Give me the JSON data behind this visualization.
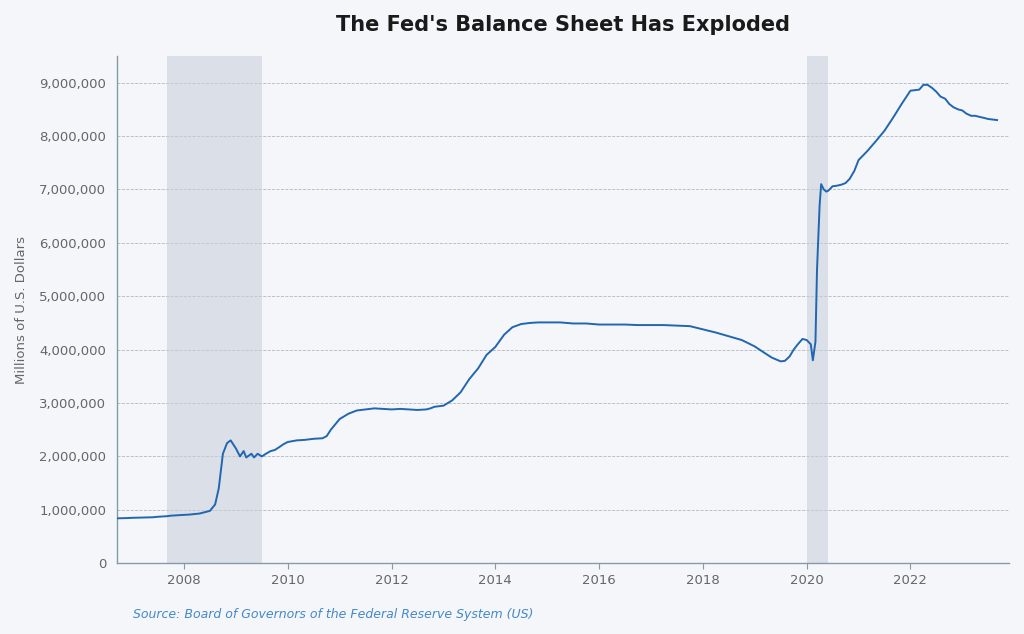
{
  "title": "The Fed's Balance Sheet Has Exploded",
  "ylabel": "Millions of U.S. Dollars",
  "source": "Source: Board of Governors of the Federal Reserve System (US)",
  "line_color": "#2166b0",
  "background_color": "#f5f6fa",
  "plot_bg_color": "#f5f6fa",
  "recession1_start": 2007.67,
  "recession1_end": 2009.5,
  "recession2_start": 2020.0,
  "recession2_end": 2020.42,
  "recession_color": "#c8d0dc",
  "recession_alpha": 0.6,
  "ylim": [
    0,
    9500000
  ],
  "yticks": [
    0,
    1000000,
    2000000,
    3000000,
    4000000,
    5000000,
    6000000,
    7000000,
    8000000,
    9000000
  ],
  "ytick_labels": [
    "0",
    "1,000,000",
    "2,000,000",
    "3,000,000",
    "4,000,000",
    "5,000,000",
    "6,000,000",
    "7,000,000",
    "8,000,000",
    "9,000,000"
  ],
  "xlim_start": 2006.7,
  "xlim_end": 2023.9,
  "xticks": [
    2008,
    2010,
    2012,
    2014,
    2016,
    2018,
    2020,
    2022
  ],
  "data": [
    [
      2006.7,
      840000
    ],
    [
      2006.9,
      845000
    ],
    [
      2007.0,
      850000
    ],
    [
      2007.2,
      855000
    ],
    [
      2007.4,
      860000
    ],
    [
      2007.5,
      870000
    ],
    [
      2007.6,
      875000
    ],
    [
      2007.67,
      880000
    ],
    [
      2007.75,
      890000
    ],
    [
      2007.9,
      900000
    ],
    [
      2008.0,
      905000
    ],
    [
      2008.1,
      910000
    ],
    [
      2008.3,
      930000
    ],
    [
      2008.5,
      980000
    ],
    [
      2008.6,
      1100000
    ],
    [
      2008.67,
      1400000
    ],
    [
      2008.75,
      2050000
    ],
    [
      2008.83,
      2250000
    ],
    [
      2008.9,
      2300000
    ],
    [
      2009.0,
      2150000
    ],
    [
      2009.08,
      2000000
    ],
    [
      2009.15,
      2100000
    ],
    [
      2009.2,
      1980000
    ],
    [
      2009.3,
      2050000
    ],
    [
      2009.35,
      1980000
    ],
    [
      2009.42,
      2050000
    ],
    [
      2009.5,
      2000000
    ],
    [
      2009.58,
      2050000
    ],
    [
      2009.67,
      2100000
    ],
    [
      2009.75,
      2120000
    ],
    [
      2009.83,
      2170000
    ],
    [
      2009.92,
      2230000
    ],
    [
      2010.0,
      2270000
    ],
    [
      2010.17,
      2300000
    ],
    [
      2010.33,
      2310000
    ],
    [
      2010.5,
      2330000
    ],
    [
      2010.67,
      2340000
    ],
    [
      2010.75,
      2380000
    ],
    [
      2010.83,
      2500000
    ],
    [
      2011.0,
      2700000
    ],
    [
      2011.17,
      2800000
    ],
    [
      2011.33,
      2860000
    ],
    [
      2011.5,
      2880000
    ],
    [
      2011.67,
      2900000
    ],
    [
      2011.83,
      2890000
    ],
    [
      2012.0,
      2880000
    ],
    [
      2012.17,
      2890000
    ],
    [
      2012.33,
      2880000
    ],
    [
      2012.5,
      2870000
    ],
    [
      2012.67,
      2880000
    ],
    [
      2012.75,
      2900000
    ],
    [
      2012.83,
      2930000
    ],
    [
      2013.0,
      2950000
    ],
    [
      2013.17,
      3050000
    ],
    [
      2013.33,
      3200000
    ],
    [
      2013.5,
      3450000
    ],
    [
      2013.67,
      3650000
    ],
    [
      2013.83,
      3900000
    ],
    [
      2014.0,
      4050000
    ],
    [
      2014.17,
      4280000
    ],
    [
      2014.33,
      4420000
    ],
    [
      2014.5,
      4480000
    ],
    [
      2014.67,
      4500000
    ],
    [
      2014.83,
      4510000
    ],
    [
      2015.0,
      4510000
    ],
    [
      2015.25,
      4510000
    ],
    [
      2015.5,
      4490000
    ],
    [
      2015.75,
      4490000
    ],
    [
      2016.0,
      4470000
    ],
    [
      2016.25,
      4470000
    ],
    [
      2016.5,
      4470000
    ],
    [
      2016.75,
      4460000
    ],
    [
      2017.0,
      4460000
    ],
    [
      2017.25,
      4460000
    ],
    [
      2017.5,
      4450000
    ],
    [
      2017.75,
      4440000
    ],
    [
      2018.0,
      4380000
    ],
    [
      2018.25,
      4320000
    ],
    [
      2018.5,
      4250000
    ],
    [
      2018.75,
      4180000
    ],
    [
      2019.0,
      4060000
    ],
    [
      2019.17,
      3950000
    ],
    [
      2019.33,
      3850000
    ],
    [
      2019.5,
      3780000
    ],
    [
      2019.58,
      3790000
    ],
    [
      2019.67,
      3870000
    ],
    [
      2019.75,
      4000000
    ],
    [
      2019.83,
      4100000
    ],
    [
      2019.92,
      4200000
    ],
    [
      2020.0,
      4180000
    ],
    [
      2020.08,
      4100000
    ],
    [
      2020.12,
      3800000
    ],
    [
      2020.17,
      4150000
    ],
    [
      2020.2,
      5500000
    ],
    [
      2020.25,
      6700000
    ],
    [
      2020.28,
      7100000
    ],
    [
      2020.33,
      7000000
    ],
    [
      2020.38,
      6960000
    ],
    [
      2020.42,
      6980000
    ],
    [
      2020.5,
      7060000
    ],
    [
      2020.58,
      7070000
    ],
    [
      2020.67,
      7090000
    ],
    [
      2020.75,
      7120000
    ],
    [
      2020.83,
      7200000
    ],
    [
      2020.92,
      7350000
    ],
    [
      2021.0,
      7550000
    ],
    [
      2021.17,
      7720000
    ],
    [
      2021.33,
      7900000
    ],
    [
      2021.5,
      8100000
    ],
    [
      2021.67,
      8350000
    ],
    [
      2021.83,
      8600000
    ],
    [
      2022.0,
      8850000
    ],
    [
      2022.17,
      8870000
    ],
    [
      2022.25,
      8960000
    ],
    [
      2022.33,
      8960000
    ],
    [
      2022.42,
      8900000
    ],
    [
      2022.5,
      8830000
    ],
    [
      2022.58,
      8740000
    ],
    [
      2022.67,
      8700000
    ],
    [
      2022.75,
      8600000
    ],
    [
      2022.83,
      8540000
    ],
    [
      2022.92,
      8500000
    ],
    [
      2023.0,
      8480000
    ],
    [
      2023.08,
      8420000
    ],
    [
      2023.17,
      8380000
    ],
    [
      2023.25,
      8380000
    ],
    [
      2023.33,
      8360000
    ],
    [
      2023.42,
      8340000
    ],
    [
      2023.5,
      8320000
    ],
    [
      2023.58,
      8310000
    ],
    [
      2023.67,
      8300000
    ]
  ]
}
